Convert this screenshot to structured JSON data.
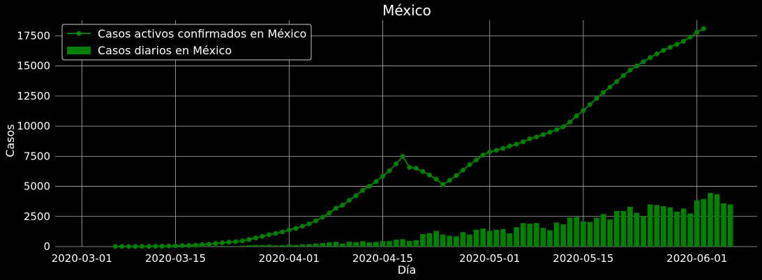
{
  "chart_data": {
    "type": "bar+line",
    "title": "México",
    "xlabel": "Día",
    "ylabel": "Casos",
    "x_start": "2020-03-06",
    "xlim": [
      "2020-02-26",
      "2020-06-10"
    ],
    "ylim": [
      0,
      18800
    ],
    "x_ticks": [
      "2020-03-01",
      "2020-03-15",
      "2020-04-01",
      "2020-04-15",
      "2020-05-01",
      "2020-05-15",
      "2020-06-01"
    ],
    "y_ticks": [
      0,
      2500,
      5000,
      7500,
      10000,
      12500,
      15000,
      17500
    ],
    "y_tick_labels": [
      "0",
      "2500",
      "5000",
      "7500",
      "10000",
      "12500",
      "15000",
      "17500"
    ],
    "grid": true,
    "legend_position": "top-left",
    "series": [
      {
        "name": "Casos activos confirmados en México",
        "type": "line",
        "marker": "circle",
        "color": "#008000",
        "values": [
          5,
          6,
          7,
          10,
          11,
          15,
          20,
          26,
          41,
          53,
          82,
          93,
          118,
          164,
          203,
          251,
          316,
          367,
          405,
          475,
          585,
          717,
          848,
          993,
          1094,
          1215,
          1378,
          1510,
          1688,
          1890,
          2143,
          2439,
          2785,
          3181,
          3441,
          3844,
          4219,
          4661,
          5014,
          5399,
          5847,
          6297,
          6875,
          7497,
          6576,
          6498,
          6235,
          5946,
          5600,
          5150,
          5500,
          5900,
          6350,
          6800,
          7200,
          7600,
          7850,
          8000,
          8150,
          8350,
          8500,
          8700,
          8950,
          9100,
          9300,
          9500,
          9700,
          9950,
          10350,
          10850,
          11300,
          11800,
          12300,
          12800,
          13250,
          13700,
          14200,
          14650,
          15000,
          15350,
          15700,
          16000,
          16300,
          16550,
          16800,
          17050,
          17400,
          17800,
          18100
        ]
      },
      {
        "name": "Casos diarios en México",
        "type": "bar",
        "color": "#008000",
        "values": [
          1,
          1,
          2,
          3,
          1,
          4,
          5,
          6,
          15,
          12,
          29,
          11,
          25,
          46,
          39,
          48,
          65,
          51,
          38,
          70,
          110,
          132,
          131,
          145,
          101,
          121,
          163,
          132,
          178,
          202,
          253,
          296,
          346,
          396,
          260,
          403,
          375,
          442,
          353,
          385,
          448,
          450,
          578,
          616,
          464,
          524,
          1032,
          1100,
          1300,
          1000,
          900,
          850,
          1200,
          1000,
          1400,
          1500,
          1300,
          1400,
          1450,
          1100,
          1600,
          1950,
          1900,
          1950,
          1550,
          1350,
          2000,
          1850,
          2400,
          2450,
          2100,
          2050,
          2400,
          2700,
          2250,
          2950,
          2950,
          3300,
          2800,
          2500,
          3500,
          3450,
          3350,
          3250,
          2900,
          3150,
          2750,
          3850,
          3950,
          4450,
          4350,
          3600,
          3500
        ]
      }
    ]
  }
}
